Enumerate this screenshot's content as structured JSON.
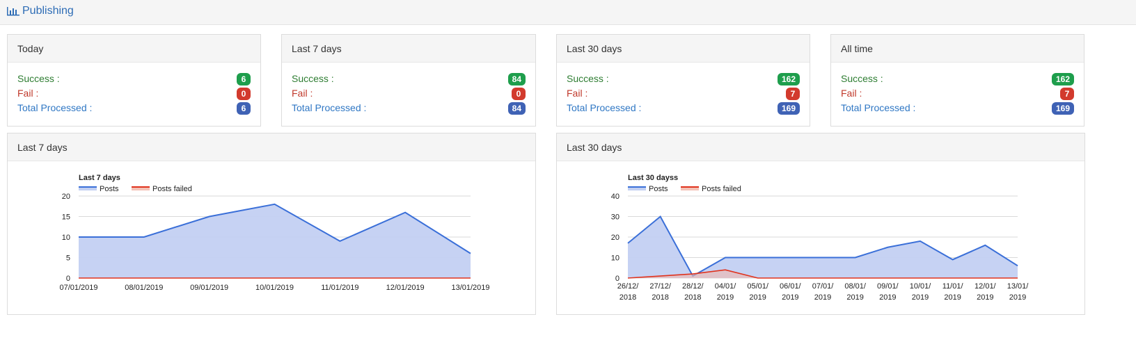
{
  "header": {
    "title": "Publishing",
    "icon": "bar-chart-icon"
  },
  "colors": {
    "success": "#1e9e4c",
    "fail": "#d23a2d",
    "total": "#3f62b5",
    "posts_line": "#3a6fd8",
    "posts_fill": "#c3d0f2",
    "failed_line": "#e0321c"
  },
  "stat_cards": [
    {
      "title": "Today",
      "success_label": "Success :",
      "fail_label": "Fail :",
      "total_label": "Total Processed :",
      "success": "6",
      "fail": "0",
      "total": "6"
    },
    {
      "title": "Last 7 days",
      "success_label": "Success :",
      "fail_label": "Fail :",
      "total_label": "Total Processed :",
      "success": "84",
      "fail": "0",
      "total": "84"
    },
    {
      "title": "Last 30 days",
      "success_label": "Success :",
      "fail_label": "Fail :",
      "total_label": "Total Processed :",
      "success": "162",
      "fail": "7",
      "total": "169"
    },
    {
      "title": "All time",
      "success_label": "Success :",
      "fail_label": "Fail :",
      "total_label": "Total Processed :",
      "success": "162",
      "fail": "7",
      "total": "169"
    }
  ],
  "chart_panels": [
    {
      "title": "Last 7 days"
    },
    {
      "title": "Last 30 days"
    }
  ],
  "chart_data": [
    {
      "type": "area",
      "title": "Last 7 days",
      "categories": [
        "07/01/2019",
        "08/01/2019",
        "09/01/2019",
        "10/01/2019",
        "11/01/2019",
        "12/01/2019",
        "13/01/2019"
      ],
      "series": [
        {
          "name": "Posts",
          "values": [
            10,
            10,
            15,
            18,
            9,
            16,
            6
          ]
        },
        {
          "name": "Posts failed",
          "values": [
            0,
            0,
            0,
            0,
            0,
            0,
            0
          ]
        }
      ],
      "yticks": [
        "0",
        "5",
        "10",
        "15",
        "20"
      ],
      "ylim": [
        0,
        20
      ],
      "grid": true,
      "legend": "top-left"
    },
    {
      "type": "area",
      "title": "Last 30 dayss",
      "categories": [
        "26/12/2018",
        "27/12/2018",
        "28/12/2018",
        "04/01/2019",
        "05/01/2019",
        "06/01/2019",
        "07/01/2019",
        "08/01/2019",
        "09/01/2019",
        "10/01/2019",
        "11/01/2019",
        "12/01/2019",
        "13/01/2019"
      ],
      "series": [
        {
          "name": "Posts",
          "values": [
            17,
            30,
            1,
            10,
            10,
            10,
            10,
            10,
            15,
            18,
            9,
            16,
            6
          ]
        },
        {
          "name": "Posts failed",
          "values": [
            0,
            1,
            2,
            4,
            0,
            0,
            0,
            0,
            0,
            0,
            0,
            0,
            0
          ]
        }
      ],
      "yticks": [
        "0",
        "10",
        "20",
        "30",
        "40"
      ],
      "ylim": [
        0,
        40
      ],
      "grid": true,
      "legend": "top-left"
    }
  ]
}
